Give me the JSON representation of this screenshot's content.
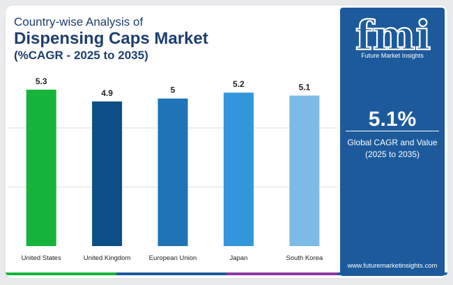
{
  "header": {
    "line1": "Country-wise Analysis of",
    "line2": "Dispensing Caps Market",
    "line3": "(%CAGR - 2025 to 2035)"
  },
  "chart_data": {
    "type": "bar",
    "categories": [
      "United States",
      "United Kingdom",
      "European Union",
      "Japan",
      "South Korea"
    ],
    "values": [
      5.3,
      4.9,
      5,
      5.2,
      5.1
    ],
    "value_labels": [
      "5.3",
      "4.9",
      "5",
      "5.2",
      "5.1"
    ],
    "colors": [
      "#16b43c",
      "#0b4f86",
      "#1f73b6",
      "#3296dc",
      "#7cbbe6"
    ],
    "ylim": [
      0,
      5.3
    ],
    "grid": true,
    "title": "",
    "xlabel": "",
    "ylabel": ""
  },
  "panel": {
    "brand": "fmi",
    "brand_sub": "Future Market Insights",
    "value": "5.1%",
    "desc_line1": "Global CAGR and Value",
    "desc_line2": "(2025 to 2035)",
    "website": "www.futuremarketinsights.com",
    "background": "#1c5a9c"
  },
  "footer": {
    "strip_colors": [
      "#16b43c",
      "#1c5a9c",
      "#8e3aa0",
      "#1c5a9c"
    ]
  }
}
